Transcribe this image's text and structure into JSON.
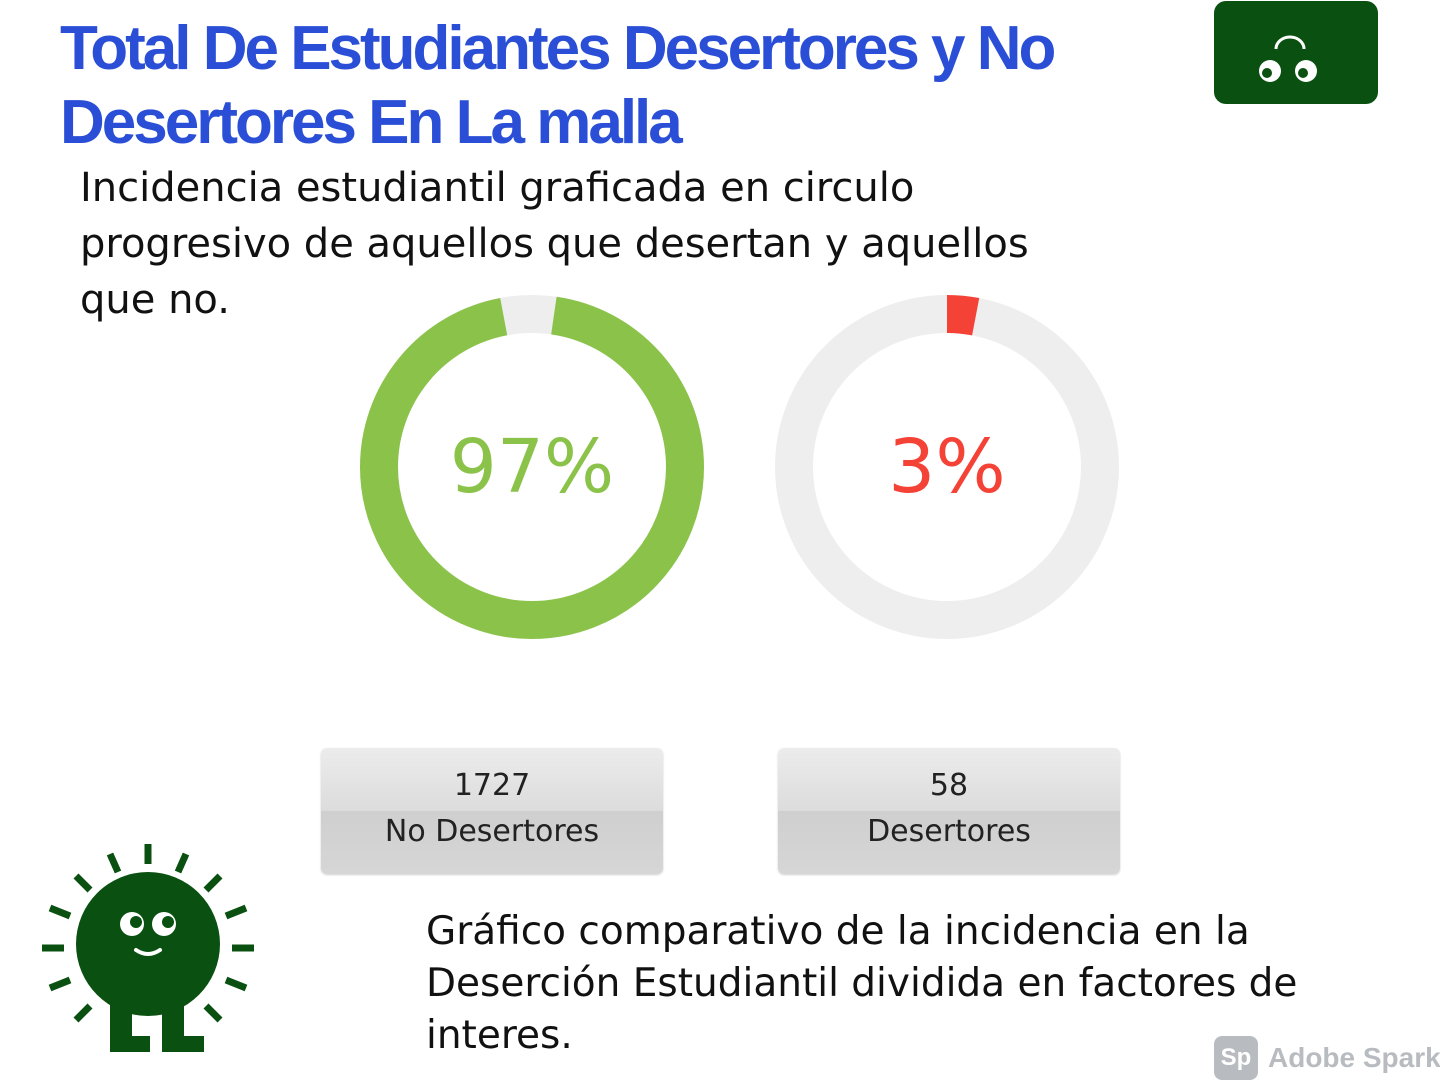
{
  "header": {
    "title": "Total De Estudiantes Desertores y No Desertores En La malla",
    "subtitle": "Incidencia estudiantil graficada en circulo progresivo de aquellos que desertan y aquellos que no."
  },
  "colors": {
    "title": "#2a4fd6",
    "green": "#8bc34a",
    "red": "#f44336",
    "track": "#eeeeee",
    "brand_dark_green": "#0a5010"
  },
  "chart_data": [
    {
      "type": "pie",
      "style": "progress-ring",
      "value_percent": 97,
      "label": "97%",
      "color": "#8bc34a",
      "stat": {
        "value": "1727",
        "label": "No Desertores"
      }
    },
    {
      "type": "pie",
      "style": "progress-ring",
      "value_percent": 3,
      "label": "3%",
      "color": "#f44336",
      "stat": {
        "value": "58",
        "label": "Desertores"
      }
    }
  ],
  "caption": "Gráfico comparativo de la incidencia en la Deserción Estudiantil dividida en factores de interes.",
  "watermark": {
    "logo": "Sp",
    "text": "Adobe Spark"
  },
  "icons": {
    "badge": "peeking-eyes-icon",
    "mascot": "sun-mascot-icon"
  }
}
